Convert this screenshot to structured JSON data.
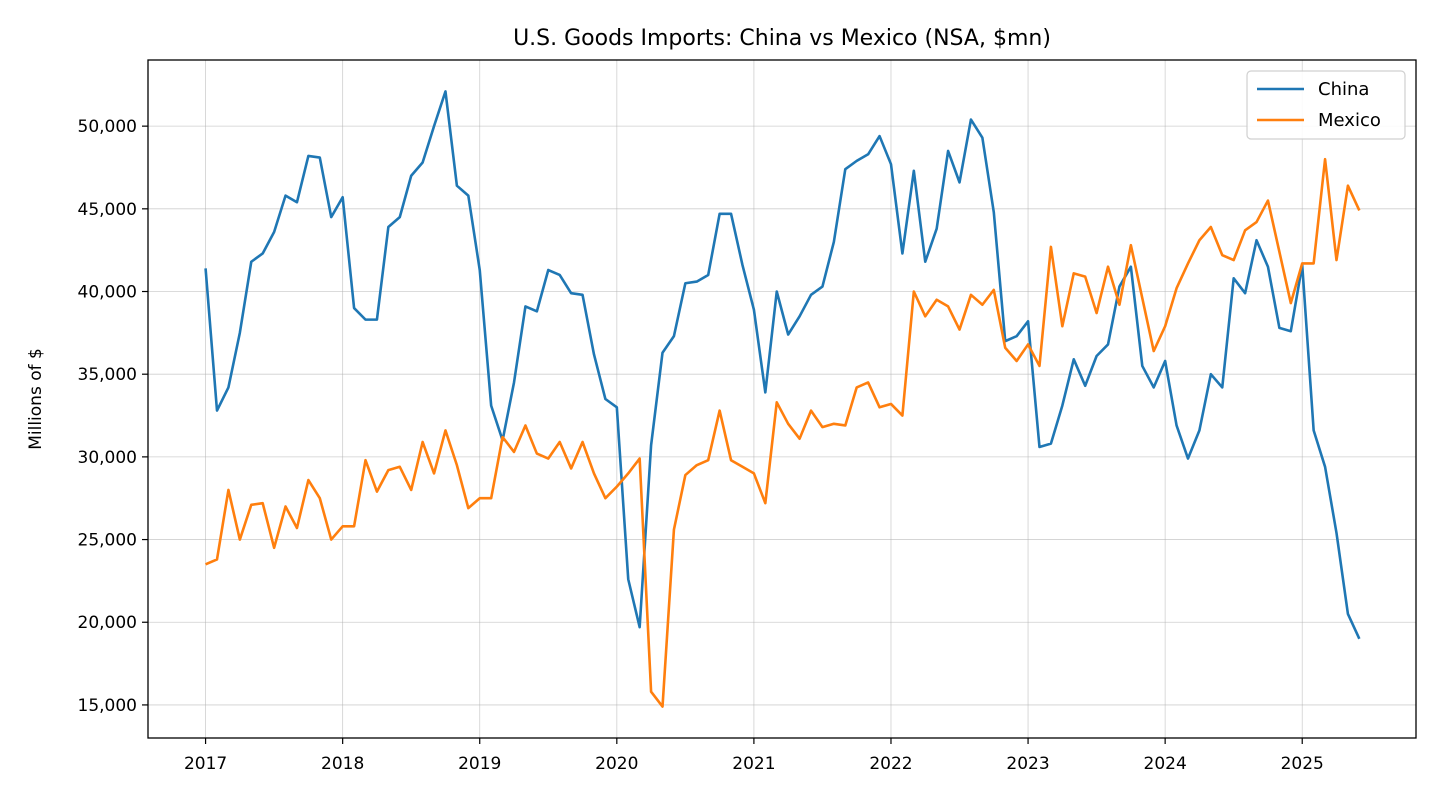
{
  "chart_data": {
    "type": "line",
    "title": "U.S. Goods Imports: China vs Mexico (NSA, $mn)",
    "xlabel": "",
    "ylabel": "Millions of $",
    "x_start": "2017-01",
    "x_frequency": "monthly",
    "xlim": [
      2016.58,
      2025.83
    ],
    "ylim": [
      13000,
      54000
    ],
    "x_ticks": [
      2017,
      2018,
      2019,
      2020,
      2021,
      2022,
      2023,
      2024,
      2025
    ],
    "x_tick_labels": [
      "2017",
      "2018",
      "2019",
      "2020",
      "2021",
      "2022",
      "2023",
      "2024",
      "2025"
    ],
    "y_ticks": [
      15000,
      20000,
      25000,
      30000,
      35000,
      40000,
      45000,
      50000
    ],
    "y_tick_labels": [
      "15,000",
      "20,000",
      "25,000",
      "30,000",
      "35,000",
      "40,000",
      "45,000",
      "50,000"
    ],
    "grid": true,
    "legend_position": "top-right",
    "series": [
      {
        "name": "China",
        "color": "#1f77b4",
        "values": [
          41400,
          32800,
          34200,
          37500,
          41800,
          42300,
          43600,
          45800,
          45400,
          48200,
          48100,
          44500,
          45700,
          39000,
          38300,
          38300,
          43900,
          44500,
          47000,
          47800,
          50000,
          52100,
          46400,
          45800,
          41300,
          33100,
          31000,
          34500,
          39100,
          38800,
          41300,
          41000,
          39900,
          39800,
          36200,
          33500,
          33000,
          22600,
          19700,
          30700,
          36300,
          37300,
          40500,
          40600,
          41000,
          44700,
          44700,
          41600,
          38900,
          33900,
          40000,
          37400,
          38500,
          39800,
          40300,
          43000,
          47400,
          47900,
          48300,
          49400,
          47700,
          42300,
          47300,
          41800,
          43800,
          48500,
          46600,
          50400,
          49300,
          44800,
          37000,
          37300,
          38200,
          30600,
          30800,
          33100,
          35900,
          34300,
          36100,
          36800,
          40300,
          41500,
          35500,
          34200,
          35800,
          31900,
          29900,
          31600,
          35000,
          34200,
          40800,
          39900,
          43100,
          41500,
          37800,
          37600,
          41600,
          31600,
          29400,
          25400,
          20500,
          19000
        ]
      },
      {
        "name": "Mexico",
        "color": "#ff7f0e",
        "values": [
          23500,
          23800,
          28000,
          25000,
          27100,
          27200,
          24500,
          27000,
          25700,
          28600,
          27500,
          25000,
          25800,
          25800,
          29800,
          27900,
          29200,
          29400,
          28000,
          30900,
          29000,
          31600,
          29500,
          26900,
          27500,
          27500,
          31200,
          30300,
          31900,
          30200,
          29900,
          30900,
          29300,
          30900,
          29000,
          27500,
          28200,
          29000,
          29900,
          15800,
          14900,
          25600,
          28900,
          29500,
          29800,
          32800,
          29800,
          29400,
          29000,
          27200,
          33300,
          32000,
          31100,
          32800,
          31800,
          32000,
          31900,
          34200,
          34500,
          33000,
          33200,
          32500,
          40000,
          38500,
          39500,
          39100,
          37700,
          39800,
          39200,
          40100,
          36600,
          35800,
          36800,
          35500,
          42700,
          37900,
          41100,
          40900,
          38700,
          41500,
          39200,
          42800,
          39600,
          36400,
          37900,
          40200,
          41700,
          43100,
          43900,
          42200,
          41900,
          43700,
          44200,
          45500,
          42400,
          39300,
          41700,
          41700,
          48000,
          41900,
          46400,
          44900
        ]
      }
    ]
  }
}
